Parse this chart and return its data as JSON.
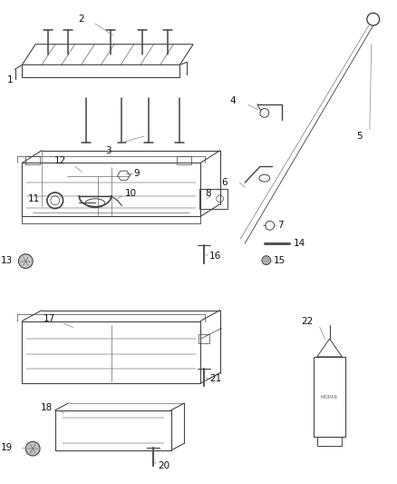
{
  "bg_color": "#ffffff",
  "line_color": "#444444",
  "label_color": "#111111",
  "lw_main": 0.8,
  "lw_thin": 0.5,
  "lw_thick": 1.2,
  "fig_w": 4.38,
  "fig_h": 5.33,
  "dpi": 100
}
